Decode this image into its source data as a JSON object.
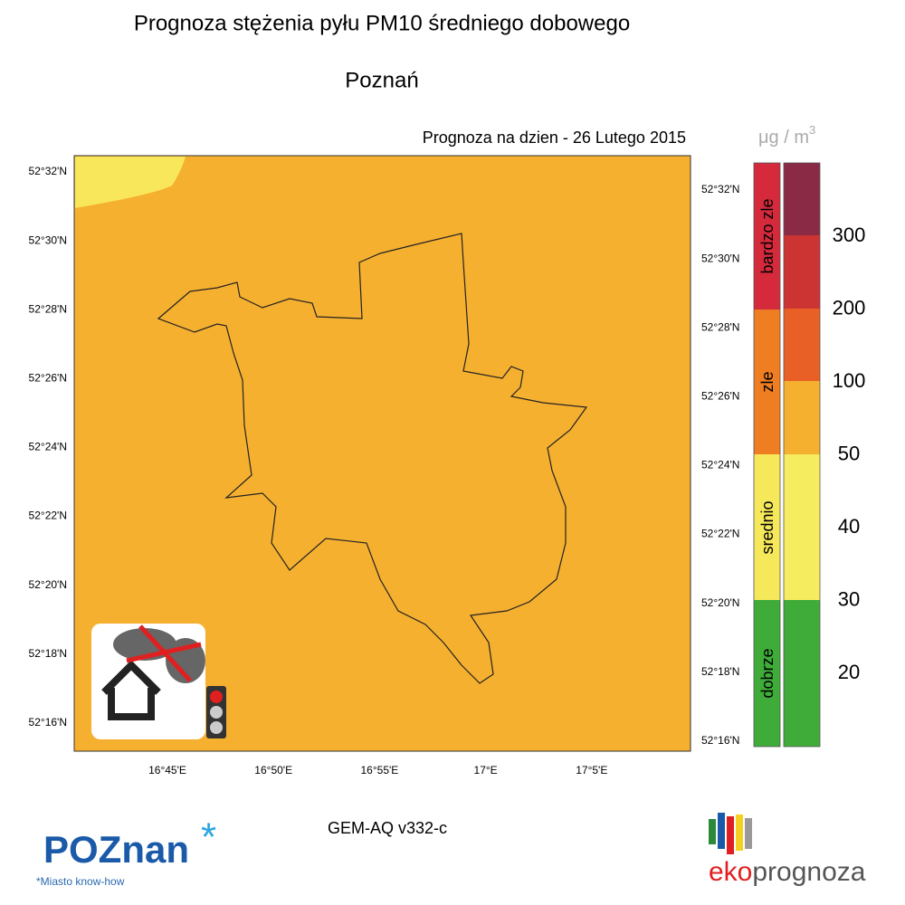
{
  "title": "Prognoza stężenia pyłu PM10 średniego dobowego",
  "city": "Poznań",
  "forecast_label": "Prognoza na dzien -  26 Lutego 2015",
  "unit": {
    "base": "μg / m",
    "exp": "3"
  },
  "left_lat_labels": [
    "52°32'N",
    "52°30'N",
    "52°28'N",
    "52°26'N",
    "52°24'N",
    "52°22'N",
    "52°20'N",
    "52°18'N",
    "52°16'N"
  ],
  "right_lat_labels": [
    "52°32'N",
    "52°30'N",
    "52°28'N",
    "52°26'N",
    "52°24'N",
    "52°22'N",
    "52°20'N",
    "52°18'N",
    "52°16'N"
  ],
  "lon_labels": [
    "16°45'E",
    "16°50'E",
    "16°55'E",
    "17°E",
    "17°5'E"
  ],
  "legend": {
    "categories": [
      "bardzo zle",
      "zle",
      "srednio",
      "dobrze"
    ],
    "scale_labels": [
      "300",
      "200",
      "100",
      "50",
      "40",
      "30",
      "20"
    ]
  },
  "model": "GEM-AQ v332-c",
  "logos": {
    "poznan": "POZnan",
    "poznan_star": "*",
    "poznan_tagline": "*Miasto know-how",
    "eko_a": "eko",
    "eko_b": "prognoza"
  }
}
